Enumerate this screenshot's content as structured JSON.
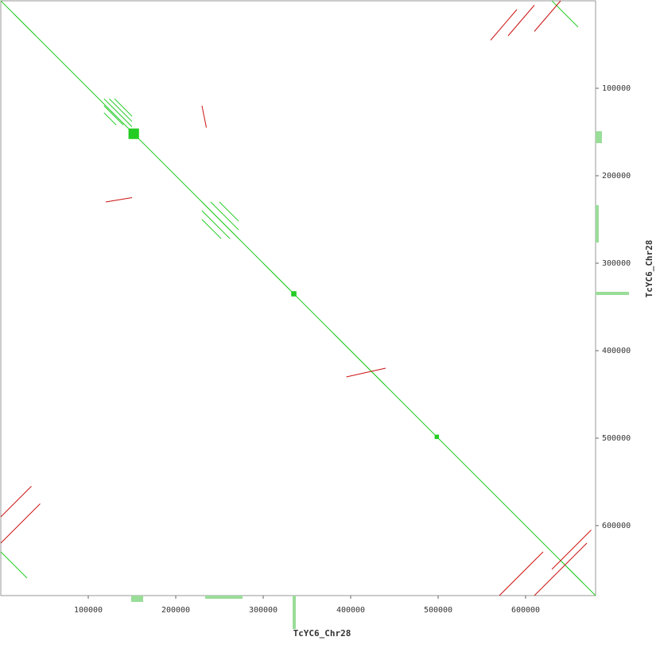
{
  "chart_data": {
    "type": "dotplot",
    "xlabel": "TcYC6_Chr28",
    "ylabel": "TcYC6_Chr28",
    "xlim": [
      0,
      680000
    ],
    "ylim": [
      0,
      680000
    ],
    "xticks": [
      100000,
      200000,
      300000,
      400000,
      500000,
      600000
    ],
    "yticks": [
      100000,
      200000,
      300000,
      400000,
      500000,
      600000
    ],
    "series": [
      {
        "color": "#22cc22",
        "segments": [
          [
            0,
            0,
            680000,
            680000
          ],
          [
            118000,
            112000,
            150000,
            144000
          ],
          [
            124000,
            112000,
            150000,
            138000
          ],
          [
            130000,
            112000,
            150000,
            132000
          ],
          [
            118000,
            120000,
            140000,
            142000
          ],
          [
            118000,
            128000,
            132000,
            142000
          ],
          [
            230000,
            230000,
            272000,
            272000
          ],
          [
            240000,
            230000,
            272000,
            262000
          ],
          [
            250000,
            230000,
            272000,
            252000
          ],
          [
            230000,
            240000,
            262000,
            272000
          ],
          [
            230000,
            250000,
            252000,
            272000
          ],
          [
            15000,
            15000,
            40000,
            40000
          ],
          [
            640000,
            640000,
            665000,
            665000
          ],
          [
            0,
            630000,
            30000,
            660000
          ],
          [
            630000,
            0,
            660000,
            30000
          ],
          [
            300000,
            300000,
            330000,
            330000
          ],
          [
            380000,
            380000,
            440000,
            440000
          ]
        ]
      },
      {
        "color": "#cc1111",
        "segments": [
          [
            560000,
            45000,
            590000,
            10000
          ],
          [
            580000,
            40000,
            610000,
            5000
          ],
          [
            610000,
            35000,
            640000,
            0
          ],
          [
            0,
            590000,
            35000,
            555000
          ],
          [
            0,
            620000,
            45000,
            575000
          ],
          [
            570000,
            680000,
            620000,
            630000
          ],
          [
            610000,
            680000,
            670000,
            620000
          ],
          [
            630000,
            650000,
            675000,
            605000
          ],
          [
            120000,
            230000,
            150000,
            225000
          ],
          [
            230000,
            120000,
            235000,
            145000
          ],
          [
            395000,
            430000,
            440000,
            420000
          ]
        ]
      }
    ],
    "blocks": [
      [
        146000,
        146000,
        158000,
        158000
      ],
      [
        332000,
        332000,
        338000,
        338000
      ],
      [
        496000,
        496000,
        501000,
        501000
      ]
    ]
  }
}
